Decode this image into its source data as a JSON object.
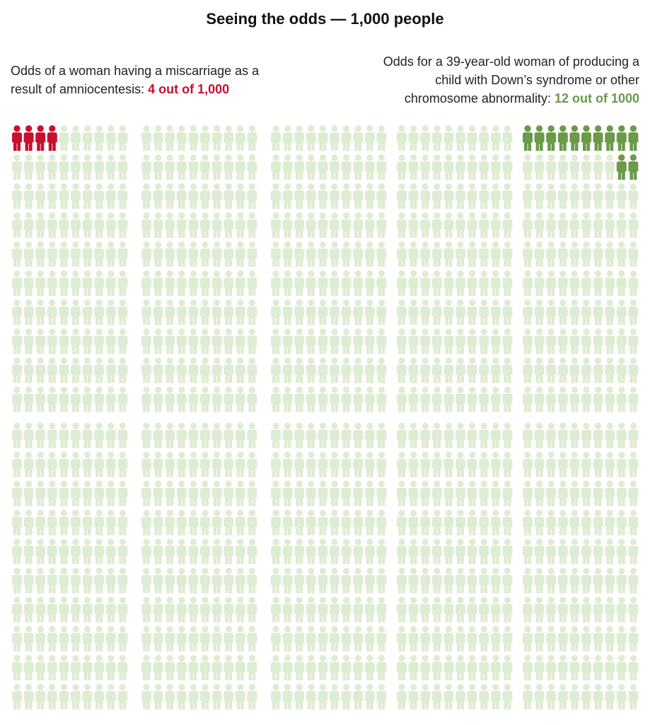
{
  "chart_data": {
    "type": "pictograph",
    "title": "Seeing the odds — 1,000 people",
    "total": 1000,
    "color": "#dfecd4",
    "highlights": [
      {
        "text": "Odds of a woman having a miscarriage as a result of amniocentesis: ",
        "value": 4,
        "value_label": "4 out of 1,000",
        "color": "#c8102e",
        "corner": "top-left"
      },
      {
        "text": "Odds for a 39-year-old woman of producing a child with Down’s syndrome or other chromosome abnormality: ",
        "value": 12,
        "value_label": "12 out of 1000",
        "color": "#6a9a4a",
        "corner": "top-right"
      }
    ]
  }
}
